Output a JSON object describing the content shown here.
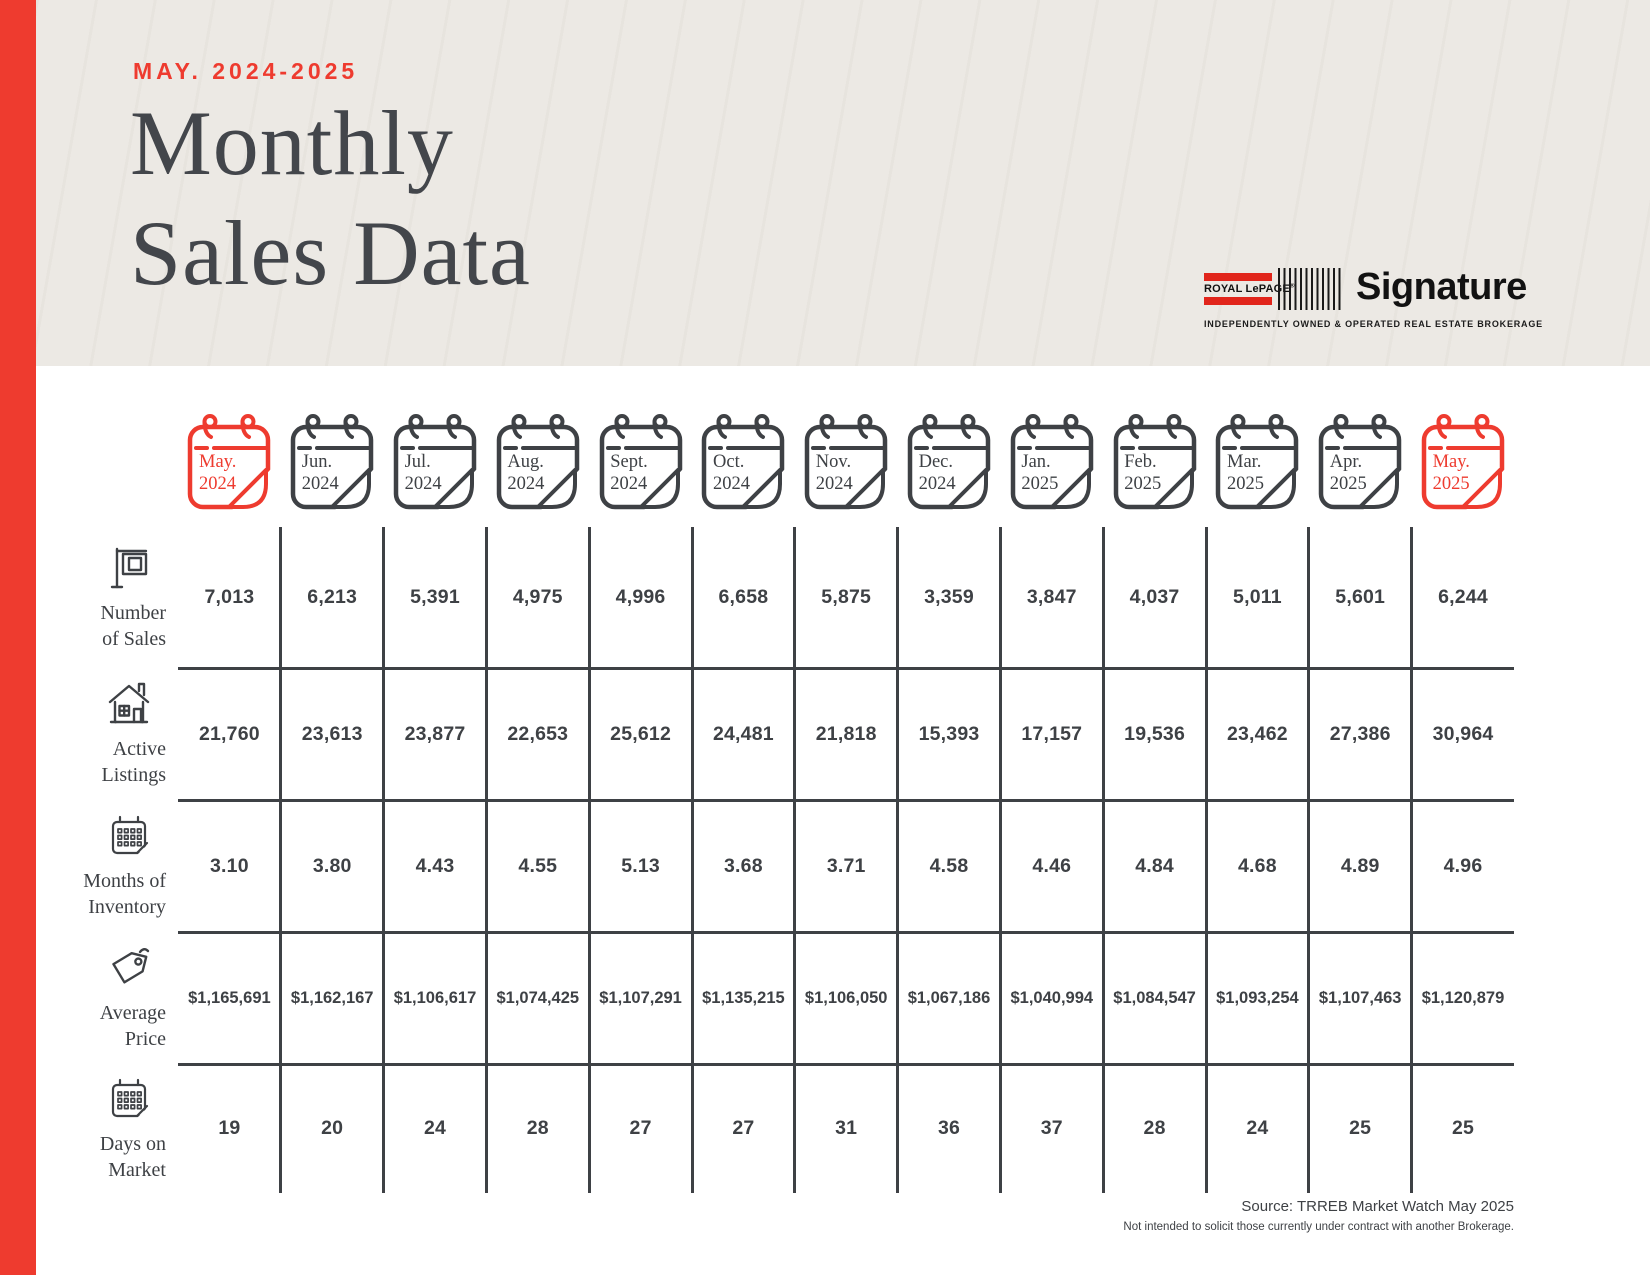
{
  "page": {
    "eyebrow": "MAY. 2024-2025",
    "title_line1": "Monthly",
    "title_line2": "Sales Data",
    "colors": {
      "accent": "#EE3B2F",
      "ink": "#3E4145",
      "header_bg": "#ECE9E4",
      "logo_red": "#E1251B",
      "paper": "#FFFFFF"
    }
  },
  "logo": {
    "brand": "ROYAL LePAGE",
    "registered": "®",
    "name": "Signature",
    "tagline": "INDEPENDENTLY OWNED & OPERATED REAL ESTATE BROKERAGE"
  },
  "table": {
    "columns": [
      {
        "label": "May.",
        "year": "2024",
        "highlight": true
      },
      {
        "label": "Jun.",
        "year": "2024",
        "highlight": false
      },
      {
        "label": "Jul.",
        "year": "2024",
        "highlight": false
      },
      {
        "label": "Aug.",
        "year": "2024",
        "highlight": false
      },
      {
        "label": "Sept.",
        "year": "2024",
        "highlight": false
      },
      {
        "label": "Oct.",
        "year": "2024",
        "highlight": false
      },
      {
        "label": "Nov.",
        "year": "2024",
        "highlight": false
      },
      {
        "label": "Dec.",
        "year": "2024",
        "highlight": false
      },
      {
        "label": "Jan.",
        "year": "2025",
        "highlight": false
      },
      {
        "label": "Feb.",
        "year": "2025",
        "highlight": false
      },
      {
        "label": "Mar.",
        "year": "2025",
        "highlight": false
      },
      {
        "label": "Apr.",
        "year": "2025",
        "highlight": false
      },
      {
        "label": "May.",
        "year": "2025",
        "highlight": true
      }
    ],
    "rows": [
      {
        "key": "number-of-sales",
        "icon": "sign",
        "label_lines": [
          "Number",
          "of Sales"
        ],
        "small": false,
        "values": [
          "7,013",
          "6,213",
          "5,391",
          "4,975",
          "4,996",
          "6,658",
          "5,875",
          "3,359",
          "3,847",
          "4,037",
          "5,011",
          "5,601",
          "6,244"
        ]
      },
      {
        "key": "active-listings",
        "icon": "house",
        "label_lines": [
          "Active",
          "Listings"
        ],
        "small": false,
        "values": [
          "21,760",
          "23,613",
          "23,877",
          "22,653",
          "25,612",
          "24,481",
          "21,818",
          "15,393",
          "17,157",
          "19,536",
          "23,462",
          "27,386",
          "30,964"
        ]
      },
      {
        "key": "months-of-inventory",
        "icon": "calendar",
        "label_lines": [
          "Months of",
          "Inventory"
        ],
        "small": false,
        "values": [
          "3.10",
          "3.80",
          "4.43",
          "4.55",
          "5.13",
          "3.68",
          "3.71",
          "4.58",
          "4.46",
          "4.84",
          "4.68",
          "4.89",
          "4.96"
        ]
      },
      {
        "key": "average-price",
        "icon": "tag",
        "label_lines": [
          "Average",
          "Price"
        ],
        "small": true,
        "values": [
          "$1,165,691",
          "$1,162,167",
          "$1,106,617",
          "$1,074,425",
          "$1,107,291",
          "$1,135,215",
          "$1,106,050",
          "$1,067,186",
          "$1,040,994",
          "$1,084,547",
          "$1,093,254",
          "$1,107,463",
          "$1,120,879"
        ]
      },
      {
        "key": "days-on-market",
        "icon": "calendar",
        "label_lines": [
          "Days on",
          "Market"
        ],
        "small": false,
        "values": [
          "19",
          "20",
          "24",
          "28",
          "27",
          "27",
          "31",
          "36",
          "37",
          "28",
          "24",
          "25",
          "25"
        ]
      }
    ]
  },
  "source": {
    "line1": "Source: TRREB Market Watch May 2025",
    "line2": "Not intended to solicit those currently under contract with another Brokerage."
  },
  "chart_data": {
    "type": "table",
    "title": "Monthly Sales Data",
    "period": "May. 2024 - May. 2025",
    "categories": [
      "May. 2024",
      "Jun. 2024",
      "Jul. 2024",
      "Aug. 2024",
      "Sept. 2024",
      "Oct. 2024",
      "Nov. 2024",
      "Dec. 2024",
      "Jan. 2025",
      "Feb. 2025",
      "Mar. 2025",
      "Apr. 2025",
      "May. 2025"
    ],
    "series": [
      {
        "name": "Number of Sales",
        "values": [
          7013,
          6213,
          5391,
          4975,
          4996,
          6658,
          5875,
          3359,
          3847,
          4037,
          5011,
          5601,
          6244
        ]
      },
      {
        "name": "Active Listings",
        "values": [
          21760,
          23613,
          23877,
          22653,
          25612,
          24481,
          21818,
          15393,
          17157,
          19536,
          23462,
          27386,
          30964
        ]
      },
      {
        "name": "Months of Inventory",
        "values": [
          3.1,
          3.8,
          4.43,
          4.55,
          5.13,
          3.68,
          3.71,
          4.58,
          4.46,
          4.84,
          4.68,
          4.89,
          4.96
        ]
      },
      {
        "name": "Average Price",
        "values": [
          1165691,
          1162167,
          1106617,
          1074425,
          1107291,
          1135215,
          1106050,
          1067186,
          1040994,
          1084547,
          1093254,
          1107463,
          1120879
        ]
      },
      {
        "name": "Days on Market",
        "values": [
          19,
          20,
          24,
          28,
          27,
          27,
          31,
          36,
          37,
          28,
          24,
          25,
          25
        ]
      }
    ],
    "highlighted_columns": [
      "May. 2024",
      "May. 2025"
    ],
    "source": "TRREB Market Watch May 2025"
  }
}
